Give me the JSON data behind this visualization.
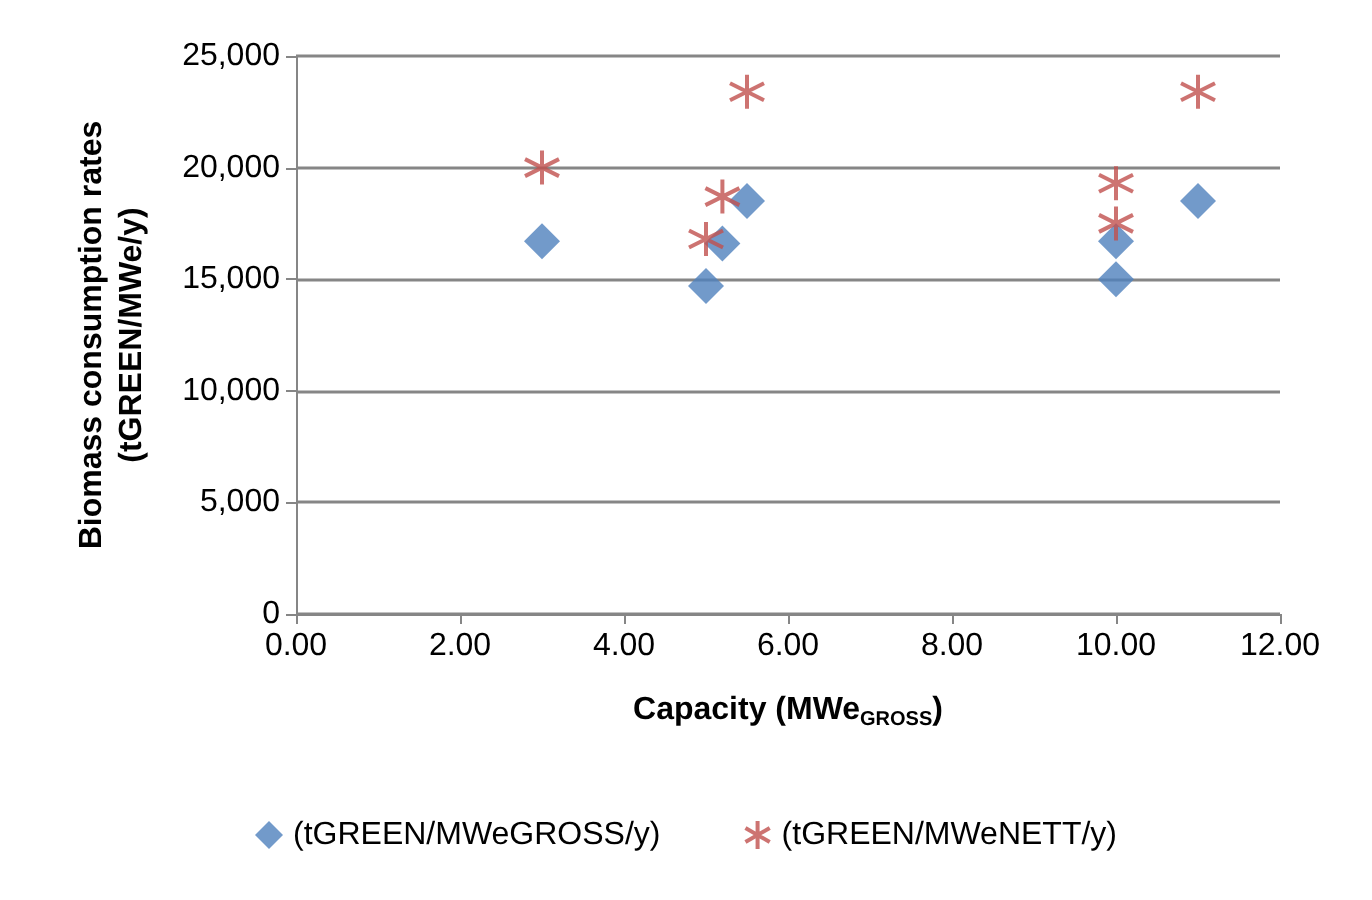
{
  "chart_data": {
    "type": "scatter",
    "xlabel": "Capacity (MWe$_{GROSS}$)",
    "ylabel": "Biomass consumption rates\n(tGREEN/MWe/y)",
    "xlim": [
      0,
      12
    ],
    "xticks": [
      {
        "value": 0,
        "label": "0.00"
      },
      {
        "value": 2,
        "label": "2.00"
      },
      {
        "value": 4,
        "label": "4.00"
      },
      {
        "value": 6,
        "label": "6.00"
      },
      {
        "value": 8,
        "label": "8.00"
      },
      {
        "value": 10,
        "label": "10.00"
      },
      {
        "value": 12,
        "label": "12.00"
      }
    ],
    "ylim": [
      0,
      25000
    ],
    "yticks": [
      0,
      {
        "value": 5000,
        "label": "5,000"
      },
      {
        "value": 10000,
        "label": "10,000"
      },
      {
        "value": 15000,
        "label": "15,000"
      },
      {
        "value": 20000,
        "label": "20,000"
      },
      {
        "value": 25000,
        "label": "25,000"
      }
    ],
    "grid": "y",
    "legend": "bottom",
    "series": [
      {
        "name": "(tGREEN/MWeGROSS/y)",
        "color": "#4f81bd",
        "marker": "diamond",
        "x": [
          3,
          5,
          5.2,
          5.5,
          10,
          10,
          11
        ],
        "values": [
          16700,
          14700,
          16600,
          18500,
          16700,
          15000,
          18500
        ]
      },
      {
        "name": "(tGREEN/MWeNETT/y)",
        "color": "#c0504d",
        "marker": "cross",
        "x": [
          3,
          5,
          5.2,
          5.5,
          10,
          10,
          11
        ],
        "values": [
          20000,
          16800,
          18700,
          23400,
          19300,
          17500,
          23400
        ]
      }
    ]
  }
}
